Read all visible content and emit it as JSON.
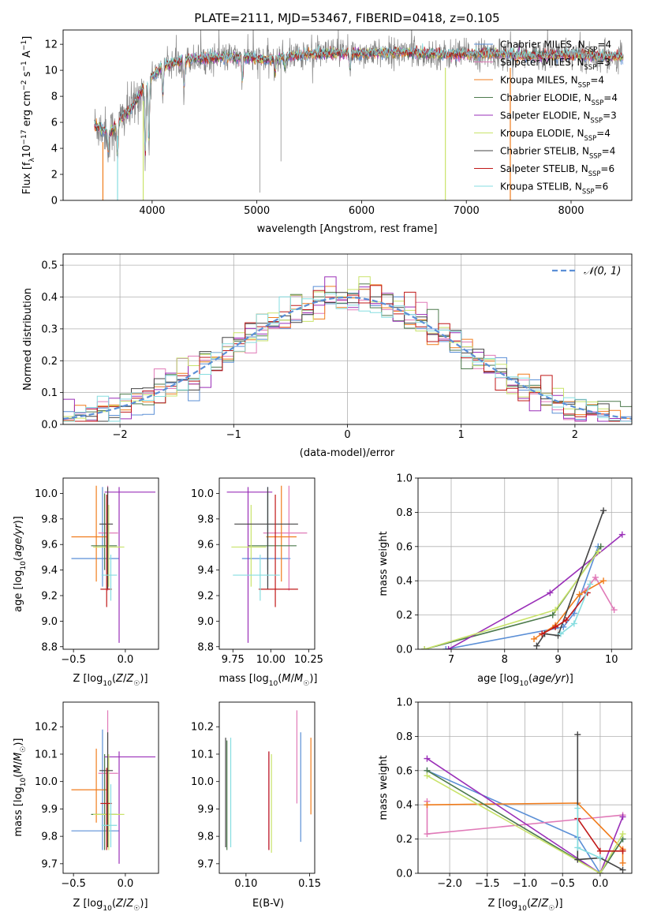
{
  "title": "PLATE=2111, MJD=53467, FIBERID=0418, z=0.105",
  "colors": {
    "Chabrier MILES": "#5b8fd6",
    "Salpeter MILES": "#e07ab8",
    "Kroupa MILES": "#f07c1c",
    "Chabrier ELODIE": "#4d7a4d",
    "Salpeter ELODIE": "#9a2fb8",
    "Kroupa ELODIE": "#c9e36a",
    "Chabrier STELIB": "#444444",
    "Salpeter STELIB": "#c01818",
    "Kroupa STELIB": "#86dde0",
    "data": "#808080",
    "gaussian": "#5b8fd6"
  },
  "chart_data": [
    {
      "id": "spectrum",
      "type": "line",
      "title": "PLATE=2111, MJD=53467, FIBERID=0418, z=0.105",
      "xlabel": "wavelength [Angstrom, rest frame]",
      "ylabel": "Flux [f_λ10^-17 erg cm^-2 s^-1 A^-1]",
      "xlim": [
        3150,
        8580
      ],
      "ylim": [
        0,
        13.1
      ],
      "xticks": [
        4000,
        5000,
        6000,
        7000,
        8000
      ],
      "yticks": [
        0,
        2,
        4,
        6,
        8,
        10,
        12
      ],
      "legend": [
        {
          "label": "Chabrier MILES, N_SSP=4",
          "main": "Chabrier MILES, N",
          "sub": "SSP",
          "rest": "=4"
        },
        {
          "label": "Salpeter MILES, N_SSP=3",
          "main": "Salpeter MILES, N",
          "sub": "SSP",
          "rest": "=3"
        },
        {
          "label": "Kroupa MILES, N_SSP=4",
          "main": "Kroupa MILES, N",
          "sub": "SSP",
          "rest": "=4"
        },
        {
          "label": "Chabrier ELODIE, N_SSP=4",
          "main": "Chabrier ELODIE, N",
          "sub": "SSP",
          "rest": "=4"
        },
        {
          "label": "Salpeter ELODIE, N_SSP=3",
          "main": "Salpeter ELODIE, N",
          "sub": "SSP",
          "rest": "=3"
        },
        {
          "label": "Kroupa ELODIE, N_SSP=4",
          "main": "Kroupa ELODIE, N",
          "sub": "SSP",
          "rest": "=4"
        },
        {
          "label": "Chabrier STELIB, N_SSP=4",
          "main": "Chabrier STELIB, N",
          "sub": "SSP",
          "rest": "=4"
        },
        {
          "label": "Salpeter STELIB, N_SSP=6",
          "main": "Salpeter STELIB, N",
          "sub": "SSP",
          "rest": "=6"
        },
        {
          "label": "Kroupa STELIB, N_SSP=6",
          "main": "Kroupa STELIB, N",
          "sub": "SSP",
          "rest": "=6"
        }
      ],
      "continuum": {
        "x": [
          3450,
          3600,
          3700,
          3800,
          3900,
          4000,
          4100,
          4300,
          4500,
          4700,
          4900,
          5100,
          5300,
          5500,
          5800,
          6100,
          6400,
          6800,
          7200,
          7600,
          8000,
          8300,
          8500
        ],
        "y": [
          5.8,
          5.2,
          6.3,
          7.0,
          8.5,
          9.5,
          10.3,
          10.8,
          10.9,
          11.0,
          11.0,
          10.8,
          11.1,
          11.2,
          11.3,
          11.3,
          11.4,
          11.2,
          11.3,
          11.1,
          11.2,
          11.1,
          11.0
        ]
      },
      "dips": [
        {
          "x": 3580,
          "y": 3.5
        },
        {
          "x": 3670,
          "y": 3.0
        },
        {
          "x": 3934,
          "y": 2.8
        },
        {
          "x": 3969,
          "y": 3.8
        },
        {
          "x": 4102,
          "y": 7.9
        },
        {
          "x": 4304,
          "y": 8.5
        },
        {
          "x": 4861,
          "y": 9.0
        },
        {
          "x": 5175,
          "y": 9.7
        },
        {
          "x": 5270,
          "y": 10.2
        },
        {
          "x": 5890,
          "y": 10.0
        }
      ],
      "model_dropouts": [
        {
          "series": "Kroupa MILES",
          "x": 3530
        },
        {
          "series": "Kroupa STELIB",
          "x": 3670
        },
        {
          "series": "Kroupa ELODIE",
          "x": 3915
        },
        {
          "series": "Kroupa ELODIE",
          "x": 6800
        },
        {
          "series": "Kroupa MILES",
          "x": 7420
        }
      ]
    },
    {
      "id": "residuals",
      "type": "line",
      "xlabel": "(data-model)/error",
      "ylabel": "Normed distribution",
      "xlim": [
        -2.5,
        2.5
      ],
      "ylim": [
        0,
        0.535
      ],
      "xticks": [
        -2,
        -1,
        0,
        1,
        2
      ],
      "yticks": [
        0.0,
        0.1,
        0.2,
        0.3,
        0.4,
        0.5
      ],
      "grid": true,
      "legend": [
        {
          "label": "N(0,1)",
          "display": "𝒩(0, 1)"
        }
      ],
      "bin_width": 0.1
    },
    {
      "id": "age-vs-Z",
      "type": "scatter",
      "xlabel": "Z [log10(Z/Z☉)]",
      "ylabel": "age [log10(age/yr)]",
      "xlim": [
        -0.6,
        0.32
      ],
      "ylim": [
        8.78,
        10.12
      ],
      "xticks": [
        -0.5,
        0.0
      ],
      "yticks": [
        8.8,
        9.0,
        9.2,
        9.4,
        9.6,
        9.8,
        10.0
      ],
      "series": [
        {
          "name": "Chabrier MILES",
          "x": -0.22,
          "xerr": [
            0.3,
            0.16
          ],
          "y": 9.49,
          "yerr": [
            0.22,
            0.56
          ]
        },
        {
          "name": "Salpeter MILES",
          "x": -0.17,
          "xerr": [
            0.09,
            0.1
          ],
          "y": 9.69,
          "yerr": [
            0.45,
            0.37
          ]
        },
        {
          "name": "Kroupa MILES",
          "x": -0.28,
          "xerr": [
            0.24,
            0.11
          ],
          "y": 9.66,
          "yerr": [
            0.35,
            0.4
          ]
        },
        {
          "name": "Chabrier ELODIE",
          "x": -0.2,
          "xerr": [
            0.13,
            0.12
          ],
          "y": 9.59,
          "yerr": [
            0.19,
            0.41
          ]
        },
        {
          "name": "Salpeter ELODIE",
          "x": -0.06,
          "xerr": [
            0.14,
            0.35
          ],
          "y": 10.01,
          "yerr": [
            1.18,
            0.04
          ]
        },
        {
          "name": "Kroupa ELODIE",
          "x": -0.16,
          "xerr": [
            0.15,
            0.15
          ],
          "y": 9.58,
          "yerr": [
            0.31,
            0.33
          ]
        },
        {
          "name": "Chabrier STELIB",
          "x": -0.17,
          "xerr": [
            0.08,
            0.05
          ],
          "y": 9.76,
          "yerr": [
            0.51,
            0.29
          ]
        },
        {
          "name": "Salpeter STELIB",
          "x": -0.18,
          "xerr": [
            0.06,
            0.05
          ],
          "y": 9.25,
          "yerr": [
            0.14,
            0.74
          ]
        },
        {
          "name": "Kroupa STELIB",
          "x": -0.14,
          "xerr": [
            0.09,
            0.06
          ],
          "y": 9.36,
          "yerr": [
            0.2,
            0.16
          ]
        }
      ]
    },
    {
      "id": "age-vs-mass",
      "type": "scatter",
      "xlabel": "mass [log10(M/M☉)]",
      "ylabel": "",
      "xlim": [
        9.66,
        10.29
      ],
      "ylim": [
        8.78,
        10.12
      ],
      "xticks": [
        9.75,
        10.0,
        10.25
      ],
      "yticks": [
        8.8,
        9.0,
        9.2,
        9.4,
        9.6,
        9.8,
        10.0
      ],
      "series": [
        {
          "name": "Chabrier MILES",
          "x": 9.98,
          "xerr": [
            0.17,
            0.15
          ],
          "y": 9.49,
          "yerr": [
            0.22,
            0.56
          ]
        },
        {
          "name": "Salpeter MILES",
          "x": 10.12,
          "xerr": [
            0.17,
            0.12
          ],
          "y": 9.69,
          "yerr": [
            0.45,
            0.37
          ]
        },
        {
          "name": "Kroupa MILES",
          "x": 10.07,
          "xerr": [
            0.1,
            0.1
          ],
          "y": 9.66,
          "yerr": [
            0.35,
            0.4
          ]
        },
        {
          "name": "Chabrier ELODIE",
          "x": 9.98,
          "xerr": [
            0.13,
            0.19
          ],
          "y": 9.59,
          "yerr": [
            0.19,
            0.41
          ]
        },
        {
          "name": "Salpeter ELODIE",
          "x": 9.85,
          "xerr": [
            0.14,
            0.16
          ],
          "y": 10.01,
          "yerr": [
            1.18,
            0.04
          ]
        },
        {
          "name": "Kroupa ELODIE",
          "x": 9.87,
          "xerr": [
            0.13,
            0.1
          ],
          "y": 9.58,
          "yerr": [
            0.31,
            0.33
          ]
        },
        {
          "name": "Chabrier STELIB",
          "x": 9.98,
          "xerr": [
            0.22,
            0.2
          ],
          "y": 9.76,
          "yerr": [
            0.51,
            0.29
          ]
        },
        {
          "name": "Salpeter STELIB",
          "x": 10.03,
          "xerr": [
            0.11,
            0.15
          ],
          "y": 9.25,
          "yerr": [
            0.14,
            0.74
          ]
        },
        {
          "name": "Kroupa STELIB",
          "x": 9.93,
          "xerr": [
            0.18,
            0.13
          ],
          "y": 9.36,
          "yerr": [
            0.2,
            0.16
          ]
        }
      ]
    },
    {
      "id": "weight-vs-age",
      "type": "line",
      "xlabel": "age [log10(age/yr)]",
      "ylabel": "mass weight",
      "xlim": [
        6.38,
        10.38
      ],
      "ylim": [
        0,
        1.0
      ],
      "xticks": [
        7,
        8,
        9,
        10
      ],
      "yticks": [
        0.0,
        0.2,
        0.4,
        0.6,
        0.8,
        1.0
      ],
      "grid": true,
      "series": [
        {
          "name": "Chabrier MILES",
          "x": [
            6.9,
            9.1,
            9.3,
            9.75
          ],
          "y": [
            0.0,
            0.13,
            0.21,
            0.6
          ]
        },
        {
          "name": "Salpeter MILES",
          "x": [
            9.5,
            9.7,
            10.05
          ],
          "y": [
            0.34,
            0.42,
            0.23
          ]
        },
        {
          "name": "Kroupa MILES",
          "x": [
            8.55,
            8.95,
            9.4,
            9.85
          ],
          "y": [
            0.06,
            0.14,
            0.32,
            0.4
          ]
        },
        {
          "name": "Chabrier ELODIE",
          "x": [
            6.5,
            8.9,
            9.8
          ],
          "y": [
            0.0,
            0.2,
            0.6
          ]
        },
        {
          "name": "Salpeter ELODIE",
          "x": [
            6.95,
            8.85,
            10.2
          ],
          "y": [
            0.0,
            0.33,
            0.67
          ]
        },
        {
          "name": "Kroupa ELODIE",
          "x": [
            6.5,
            8.95,
            9.75
          ],
          "y": [
            0.0,
            0.23,
            0.57
          ]
        },
        {
          "name": "Chabrier STELIB",
          "x": [
            8.6,
            8.75,
            9.0,
            9.85
          ],
          "y": [
            0.02,
            0.09,
            0.08,
            0.81
          ]
        },
        {
          "name": "Salpeter STELIB",
          "x": [
            8.7,
            8.95,
            9.15,
            9.55
          ],
          "y": [
            0.09,
            0.13,
            0.17,
            0.33
          ]
        },
        {
          "name": "Kroupa STELIB",
          "x": [
            9.05,
            9.3,
            9.6
          ],
          "y": [
            0.09,
            0.15,
            0.38
          ]
        }
      ]
    },
    {
      "id": "mass-vs-Z",
      "type": "scatter",
      "xlabel": "Z [log10(Z/Z☉)]",
      "ylabel": "mass [log10(M/M☉)]",
      "xlim": [
        -0.6,
        0.32
      ],
      "ylim": [
        9.665,
        10.29
      ],
      "xticks": [
        -0.5,
        0.0
      ],
      "yticks": [
        9.7,
        9.8,
        9.9,
        10.0,
        10.1,
        10.2
      ],
      "series": [
        {
          "name": "Chabrier MILES",
          "x": -0.22,
          "xerr": [
            0.3,
            0.16
          ],
          "y": 9.82,
          "yerr": [
            0.07,
            0.37
          ]
        },
        {
          "name": "Salpeter MILES",
          "x": -0.17,
          "xerr": [
            0.09,
            0.1
          ],
          "y": 10.03,
          "yerr": [
            0.23,
            0.23
          ]
        },
        {
          "name": "Kroupa MILES",
          "x": -0.28,
          "xerr": [
            0.24,
            0.11
          ],
          "y": 9.97,
          "yerr": [
            0.12,
            0.15
          ]
        },
        {
          "name": "Chabrier ELODIE",
          "x": -0.2,
          "xerr": [
            0.13,
            0.12
          ],
          "y": 9.88,
          "yerr": [
            0.13,
            0.22
          ]
        },
        {
          "name": "Salpeter ELODIE",
          "x": -0.06,
          "xerr": [
            0.14,
            0.35
          ],
          "y": 10.09,
          "yerr": [
            0.39,
            0.02
          ]
        },
        {
          "name": "Kroupa ELODIE",
          "x": -0.16,
          "xerr": [
            0.15,
            0.15
          ],
          "y": 9.88,
          "yerr": [
            0.13,
            0.22
          ]
        },
        {
          "name": "Chabrier STELIB",
          "x": -0.17,
          "xerr": [
            0.08,
            0.05
          ],
          "y": 10.04,
          "yerr": [
            0.28,
            0.14
          ]
        },
        {
          "name": "Salpeter STELIB",
          "x": -0.18,
          "xerr": [
            0.06,
            0.05
          ],
          "y": 9.92,
          "yerr": [
            0.17,
            0.13
          ]
        },
        {
          "name": "Kroupa STELIB",
          "x": -0.14,
          "xerr": [
            0.09,
            0.06
          ],
          "y": 9.84,
          "yerr": [
            0.08,
            0.15
          ]
        }
      ]
    },
    {
      "id": "mass-vs-EBV",
      "type": "scatter",
      "xlabel": "E(B-V)",
      "ylabel": "",
      "xlim": [
        0.079,
        0.154
      ],
      "ylim": [
        9.665,
        10.29
      ],
      "xticks": [
        0.1,
        0.15
      ],
      "yticks": [
        9.7,
        9.8,
        9.9,
        10.0,
        10.1,
        10.2
      ],
      "series": [
        {
          "name": "Chabrier MILES",
          "x": 0.143,
          "y": 9.98,
          "yerr": [
            0.2,
            0.2
          ]
        },
        {
          "name": "Salpeter MILES",
          "x": 0.14,
          "y": 10.09,
          "yerr": [
            0.17,
            0.17
          ]
        },
        {
          "name": "Kroupa MILES",
          "x": 0.151,
          "y": 10.02,
          "yerr": [
            0.14,
            0.14
          ]
        },
        {
          "name": "Chabrier ELODIE",
          "x": 0.085,
          "y": 9.95,
          "yerr": [
            0.2,
            0.2
          ]
        },
        {
          "name": "Salpeter ELODIE",
          "x": 0.118,
          "y": 9.93,
          "yerr": [
            0.18,
            0.18
          ]
        },
        {
          "name": "Kroupa ELODIE",
          "x": 0.12,
          "y": 9.92,
          "yerr": [
            0.18,
            0.18
          ]
        },
        {
          "name": "Chabrier STELIB",
          "x": 0.084,
          "y": 9.96,
          "yerr": [
            0.2,
            0.2
          ]
        },
        {
          "name": "Salpeter STELIB",
          "x": 0.118,
          "y": 9.93,
          "yerr": [
            0.18,
            0.18
          ]
        },
        {
          "name": "Kroupa STELIB",
          "x": 0.088,
          "y": 9.96,
          "yerr": [
            0.2,
            0.2
          ]
        }
      ]
    },
    {
      "id": "weight-vs-Z",
      "type": "line",
      "xlabel": "Z [log10(Z/Z☉)]",
      "ylabel": "mass weight",
      "xlim": [
        -2.42,
        0.42
      ],
      "ylim": [
        0,
        1.0
      ],
      "xticks": [
        -2.0,
        -1.5,
        -1.0,
        -0.5,
        0.0
      ],
      "yticks": [
        0.0,
        0.2,
        0.4,
        0.6,
        0.8,
        1.0
      ],
      "grid": true,
      "series": [
        {
          "name": "Chabrier MILES",
          "x": [
            -2.3,
            -0.3,
            0.0,
            0.3
          ],
          "y": [
            0.6,
            0.21,
            0.0,
            0.2
          ]
        },
        {
          "name": "Salpeter MILES",
          "x": [
            -2.3,
            -2.3,
            0.3
          ],
          "y": [
            0.42,
            0.23,
            0.34
          ]
        },
        {
          "name": "Kroupa MILES",
          "x": [
            -2.3,
            -0.3,
            0.3,
            0.3
          ],
          "y": [
            0.4,
            0.41,
            0.14,
            0.06
          ]
        },
        {
          "name": "Chabrier ELODIE",
          "x": [
            -2.3,
            0.0,
            0.3
          ],
          "y": [
            0.6,
            0.0,
            0.2
          ]
        },
        {
          "name": "Salpeter ELODIE",
          "x": [
            -2.3,
            0.0,
            0.3
          ],
          "y": [
            0.67,
            0.0,
            0.33
          ]
        },
        {
          "name": "Kroupa ELODIE",
          "x": [
            -2.3,
            0.0,
            0.3
          ],
          "y": [
            0.57,
            0.0,
            0.23
          ]
        },
        {
          "name": "Chabrier STELIB",
          "x": [
            -0.3,
            -0.3,
            0.0,
            0.3
          ],
          "y": [
            0.81,
            0.08,
            0.09,
            0.02
          ]
        },
        {
          "name": "Salpeter STELIB",
          "x": [
            -0.3,
            0.0,
            0.3
          ],
          "y": [
            0.32,
            0.13,
            0.13
          ]
        },
        {
          "name": "Kroupa STELIB",
          "x": [
            -0.3,
            -0.3,
            0.0
          ],
          "y": [
            0.38,
            0.15,
            0.09
          ]
        }
      ]
    }
  ]
}
